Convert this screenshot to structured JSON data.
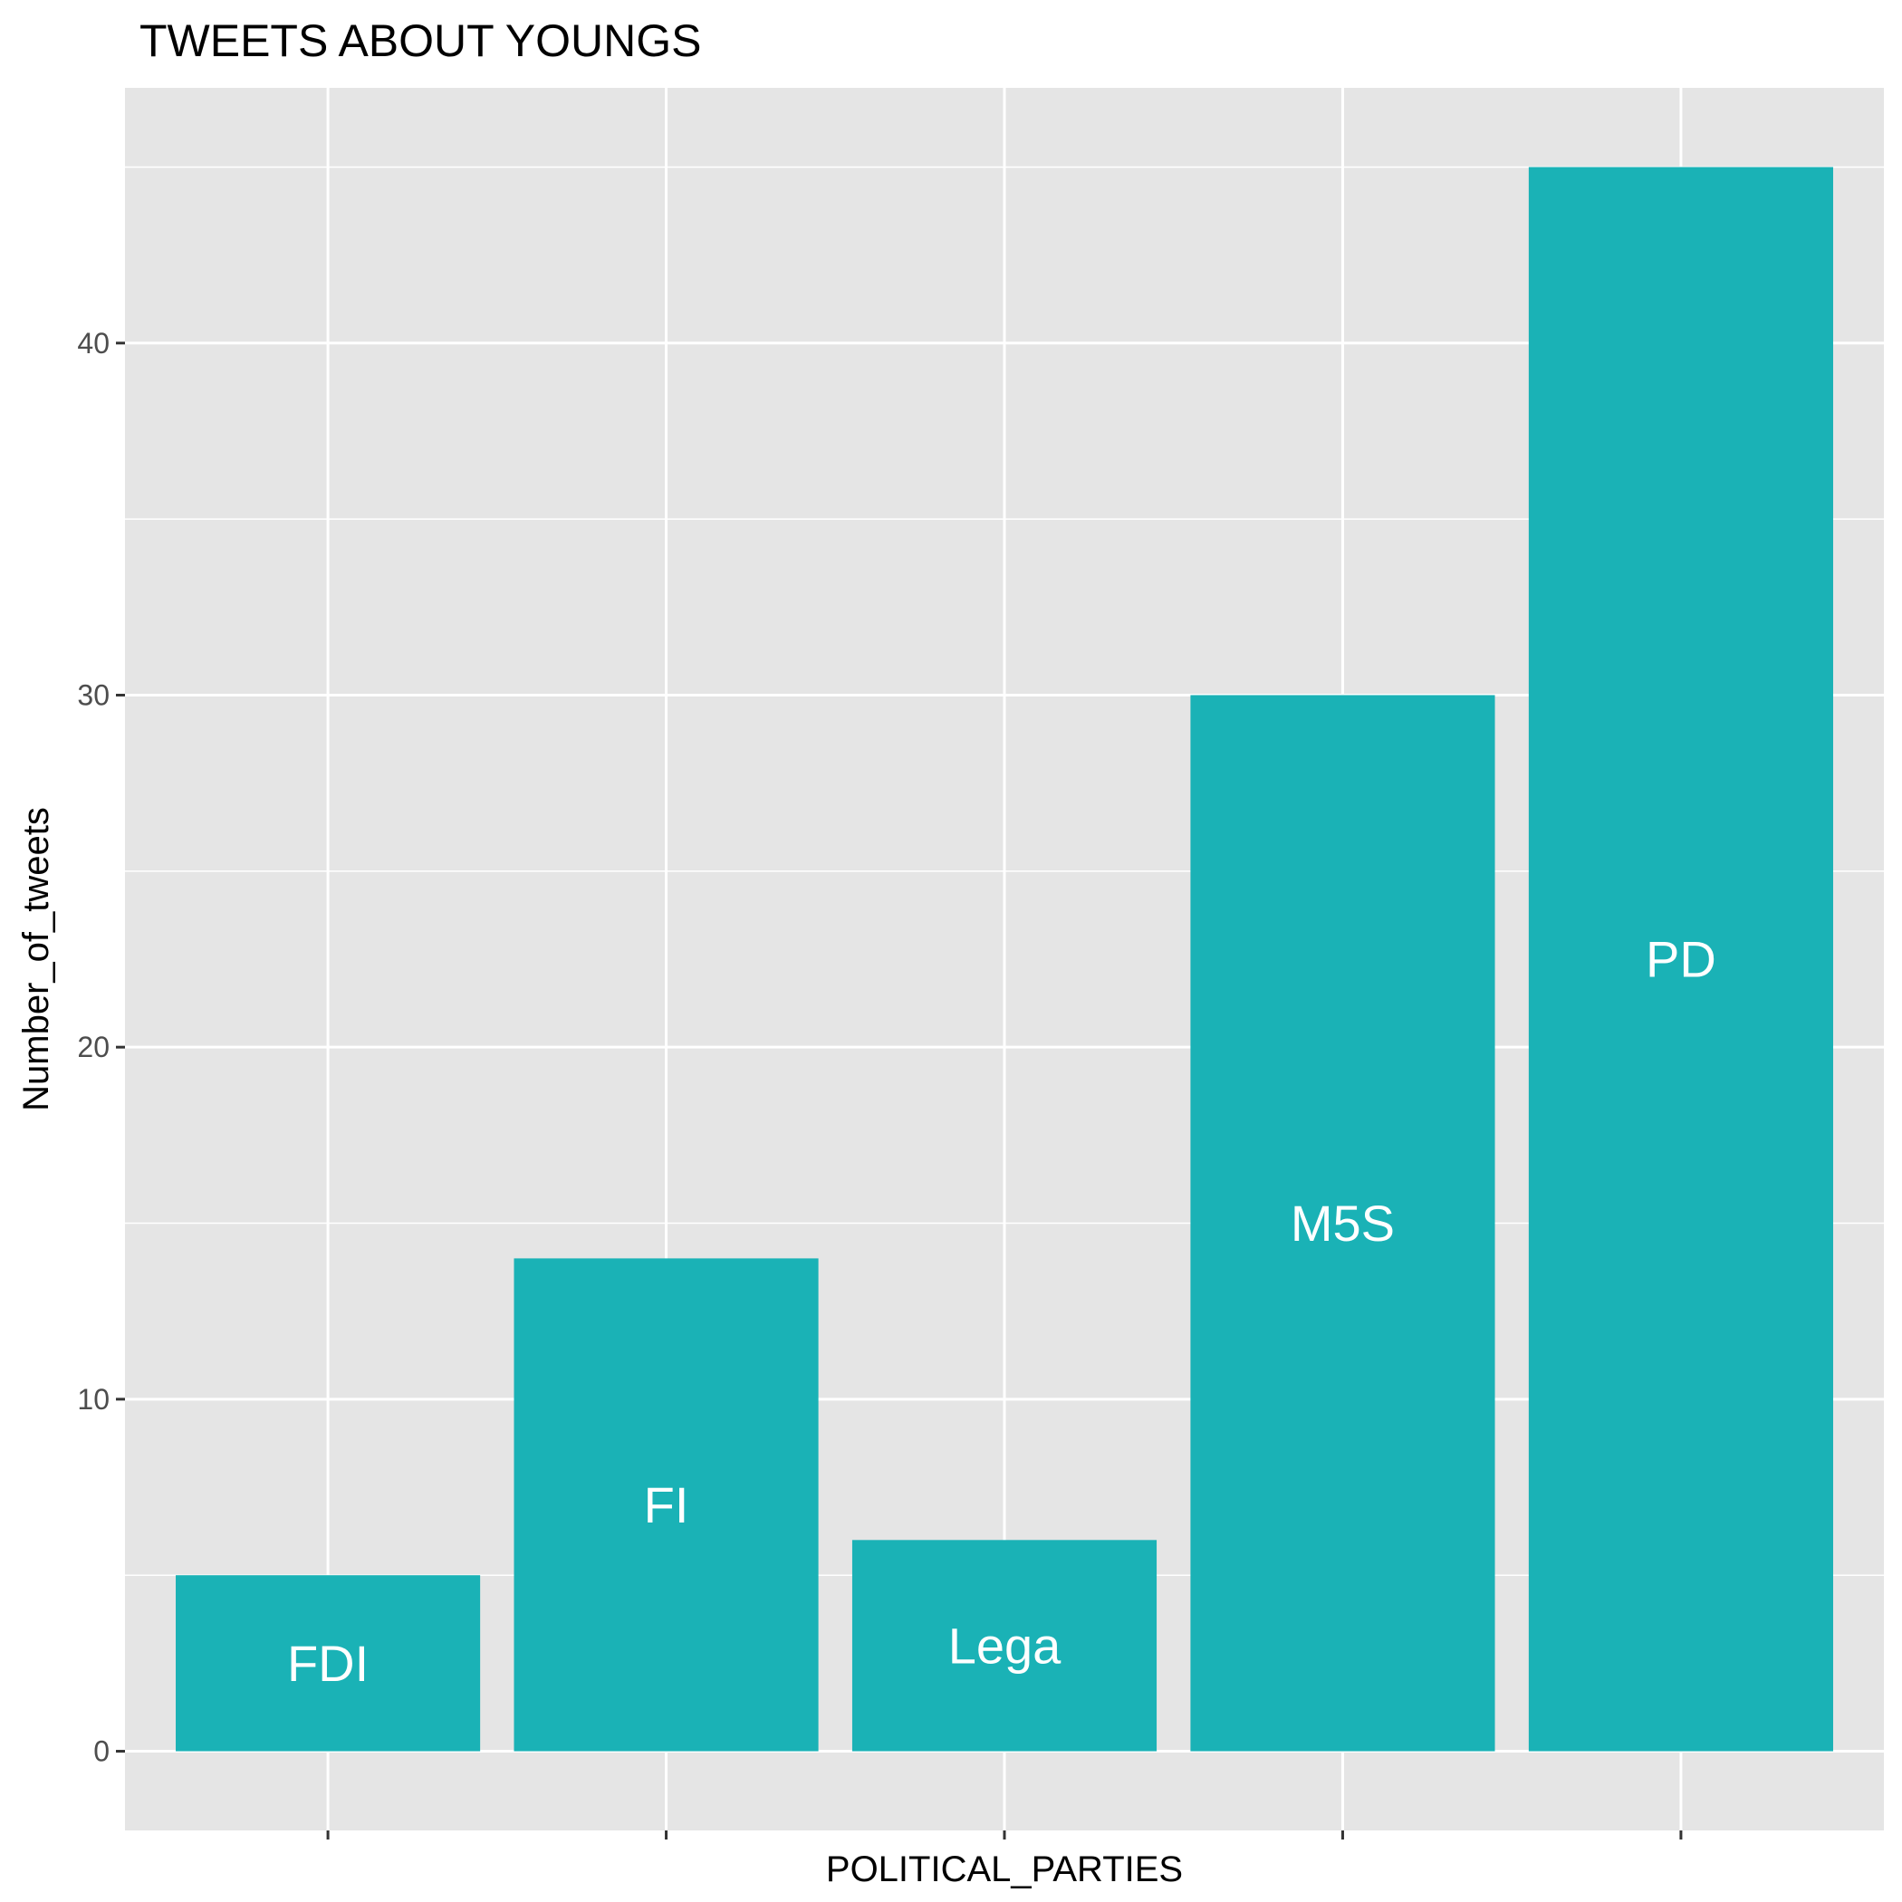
{
  "chart_data": {
    "type": "bar",
    "title": "TWEETS ABOUT YOUNGS",
    "xlabel": "POLITICAL_PARTIES",
    "ylabel": "Number_of_tweets",
    "categories": [
      "FDI",
      "FI",
      "Lega",
      "M5S",
      "PD"
    ],
    "values": [
      5,
      14,
      6,
      30,
      45
    ],
    "bar_labels": [
      "FDI",
      "FI",
      "Lega",
      "M5S",
      "PD"
    ],
    "ylim": [
      -2.25,
      47.25
    ],
    "yticks": [
      0,
      10,
      20,
      30,
      40
    ],
    "ytick_labels": [
      "0",
      "10",
      "20",
      "30",
      "40"
    ],
    "x_tick_labels_shown": false,
    "grid": true,
    "legend": "none",
    "colors": {
      "bar": "#1AB2B6",
      "panel_background": "#E5E5E5",
      "grid": "#FFFFFF"
    }
  }
}
